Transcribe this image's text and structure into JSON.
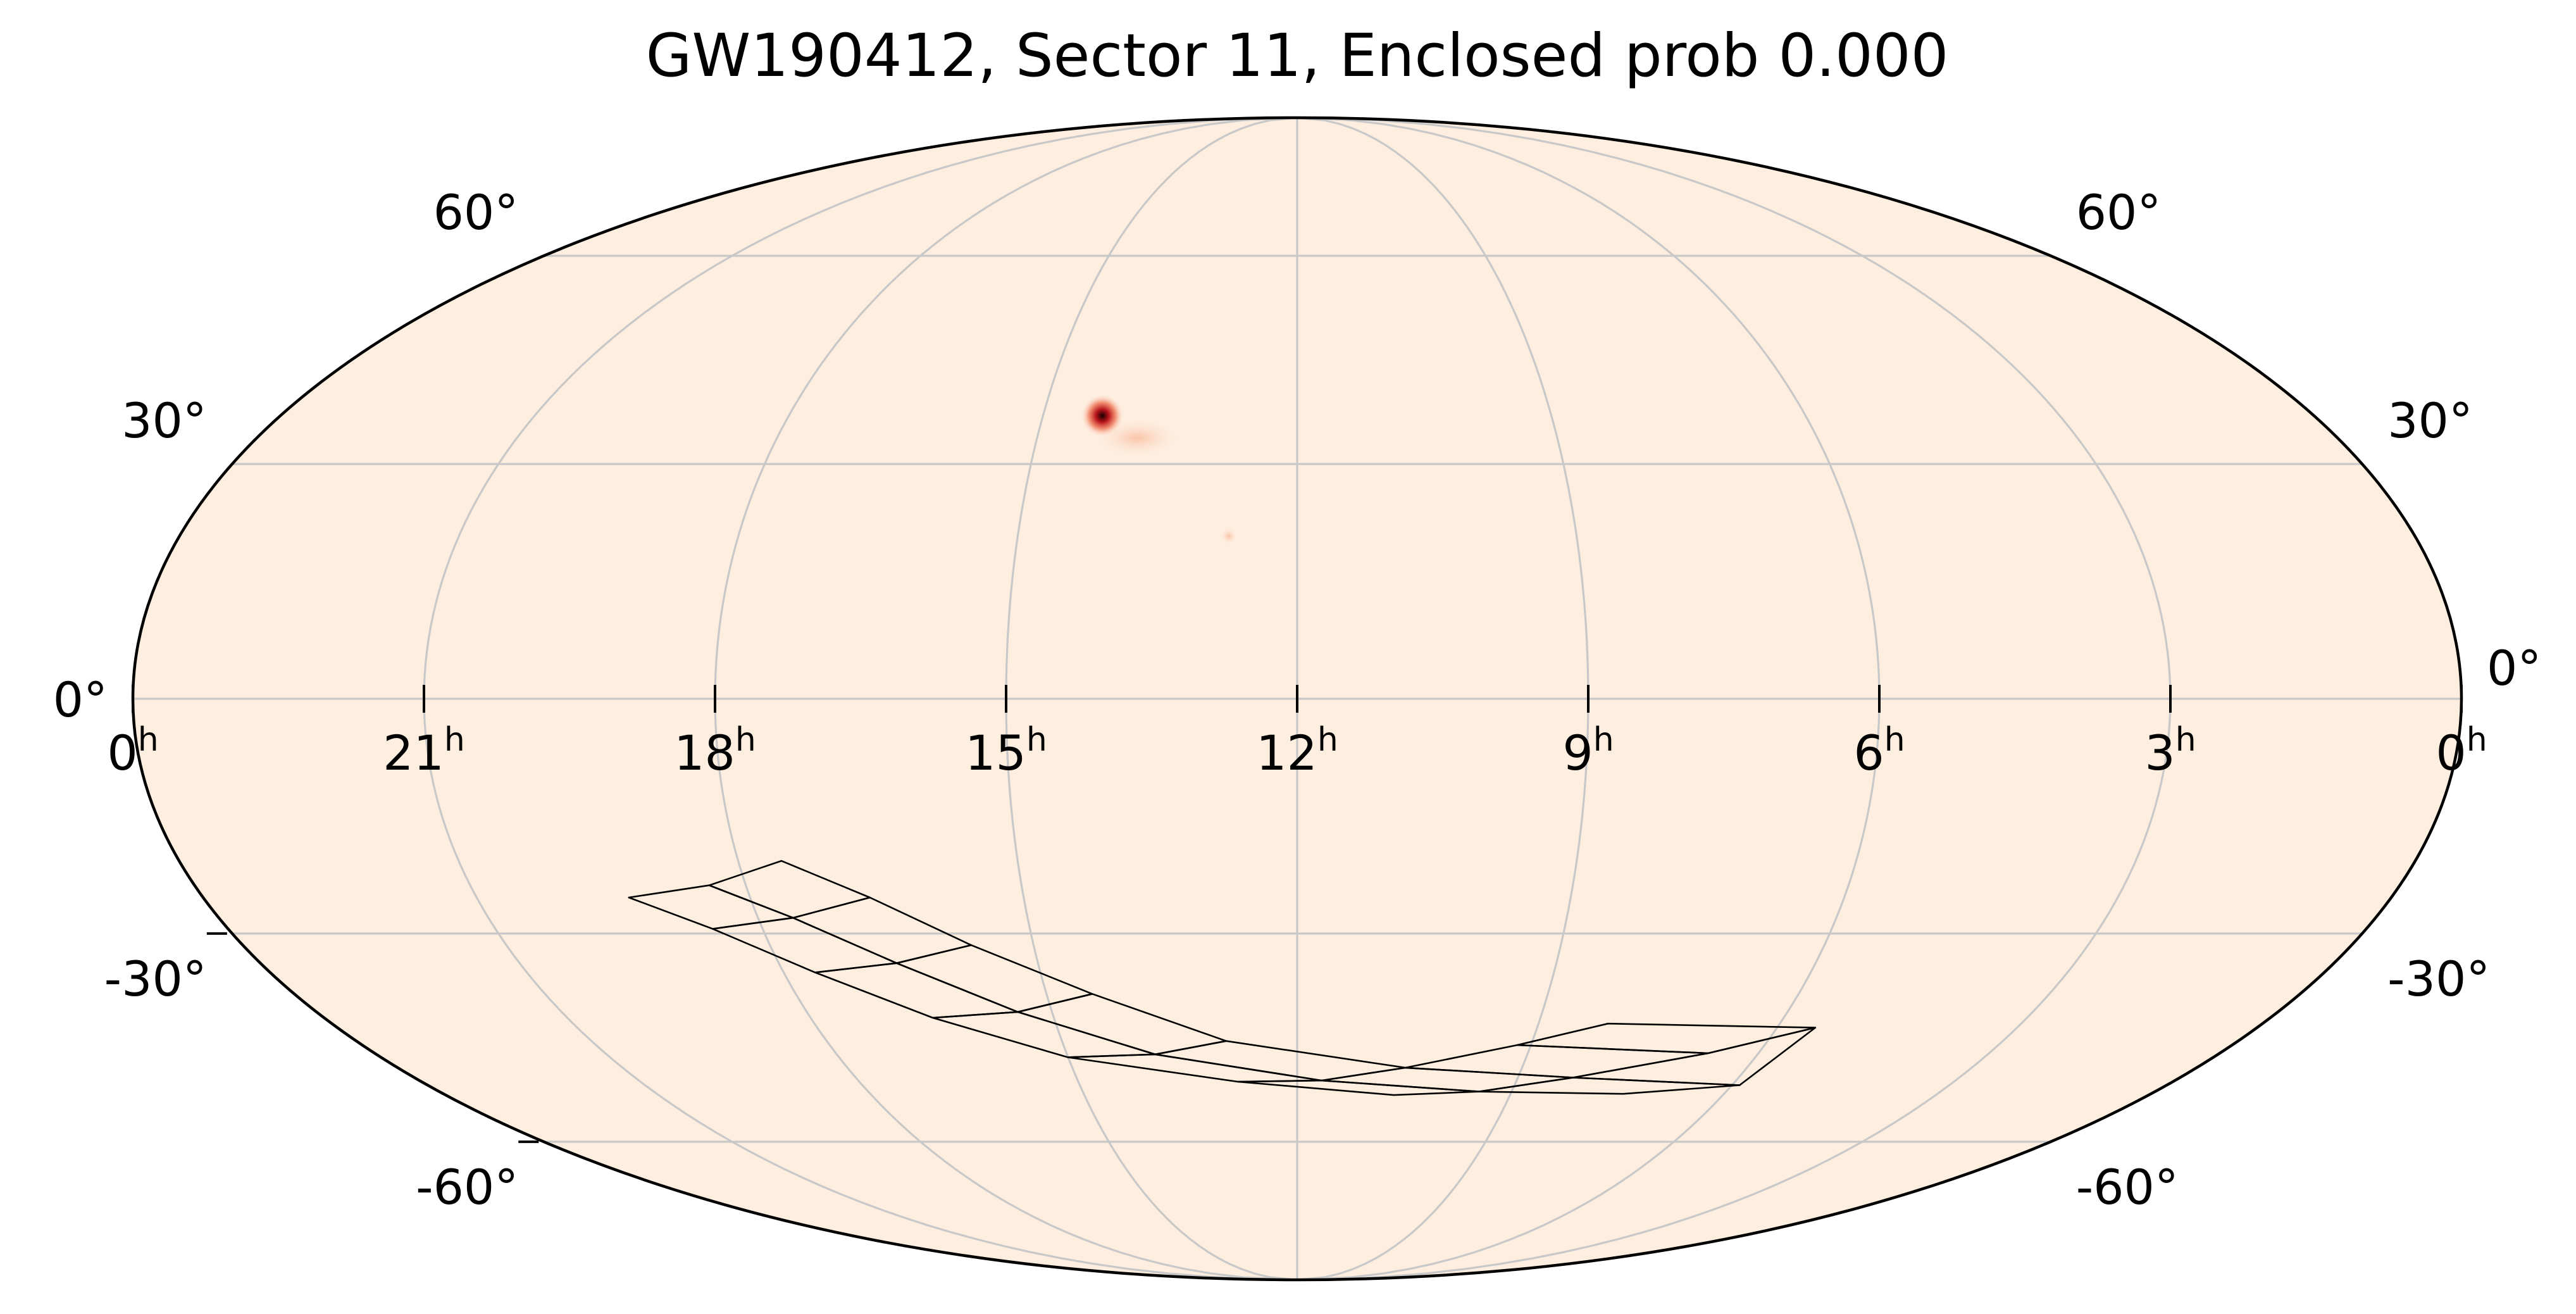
{
  "title": "GW190412, Sector 11, Enclosed prob 0.000",
  "colors": {
    "background": "#ffffff",
    "sky_fill": "#feeee0",
    "grid": "#c8c8c8",
    "frame": "#000000",
    "tile_outline": "#000000",
    "hotspot_core": "#1a0000",
    "hotspot_inner": "#b8141c",
    "hotspot_outer": "#f08060"
  },
  "projection": "mollweide",
  "ra_ticks": [
    {
      "ra_hours": 24,
      "label": "0",
      "sup": "h"
    },
    {
      "ra_hours": 21,
      "label": "21",
      "sup": "h"
    },
    {
      "ra_hours": 18,
      "label": "18",
      "sup": "h"
    },
    {
      "ra_hours": 15,
      "label": "15",
      "sup": "h"
    },
    {
      "ra_hours": 12,
      "label": "12",
      "sup": "h"
    },
    {
      "ra_hours": 9,
      "label": "9",
      "sup": "h"
    },
    {
      "ra_hours": 6,
      "label": "6",
      "sup": "h"
    },
    {
      "ra_hours": 3,
      "label": "3",
      "sup": "h"
    },
    {
      "ra_hours": 0,
      "label": "0",
      "sup": "h"
    }
  ],
  "dec_ticks": [
    {
      "dec": 60,
      "left_label": "60°",
      "right_label": "60°"
    },
    {
      "dec": 30,
      "left_label": "30°",
      "right_label": "30°"
    },
    {
      "dec": 0,
      "left_label": "0°",
      "right_label": "0°"
    },
    {
      "dec": -30,
      "left_label": "-30°",
      "right_label": "-30°"
    },
    {
      "dec": -60,
      "left_label": "-60°",
      "right_label": "-60°"
    }
  ],
  "probability_hotspot": {
    "ra_hours": 14.3,
    "dec": 36.5
  },
  "sector_tiles": [
    [
      [
        -0.574,
        -0.342
      ],
      [
        -0.505,
        -0.321
      ],
      [
        -0.433,
        -0.377
      ],
      [
        -0.502,
        -0.396
      ]
    ],
    [
      [
        -0.505,
        -0.321
      ],
      [
        -0.443,
        -0.279
      ],
      [
        -0.367,
        -0.342
      ],
      [
        -0.433,
        -0.377
      ]
    ],
    [
      [
        -0.502,
        -0.396
      ],
      [
        -0.433,
        -0.377
      ],
      [
        -0.344,
        -0.455
      ],
      [
        -0.414,
        -0.471
      ]
    ],
    [
      [
        -0.433,
        -0.377
      ],
      [
        -0.367,
        -0.342
      ],
      [
        -0.28,
        -0.424
      ],
      [
        -0.344,
        -0.455
      ]
    ],
    [
      [
        -0.414,
        -0.471
      ],
      [
        -0.344,
        -0.455
      ],
      [
        -0.24,
        -0.539
      ],
      [
        -0.313,
        -0.549
      ]
    ],
    [
      [
        -0.344,
        -0.455
      ],
      [
        -0.28,
        -0.424
      ],
      [
        -0.176,
        -0.508
      ],
      [
        -0.24,
        -0.539
      ]
    ],
    [
      [
        -0.313,
        -0.549
      ],
      [
        -0.24,
        -0.539
      ],
      [
        -0.122,
        -0.612
      ],
      [
        -0.197,
        -0.617
      ]
    ],
    [
      [
        -0.24,
        -0.539
      ],
      [
        -0.176,
        -0.508
      ],
      [
        -0.061,
        -0.589
      ],
      [
        -0.122,
        -0.612
      ]
    ],
    [
      [
        -0.197,
        -0.617
      ],
      [
        -0.122,
        -0.612
      ],
      [
        0.021,
        -0.657
      ],
      [
        -0.051,
        -0.659
      ]
    ],
    [
      [
        -0.122,
        -0.612
      ],
      [
        -0.061,
        -0.589
      ],
      [
        0.093,
        -0.635
      ],
      [
        0.021,
        -0.657
      ]
    ],
    [
      [
        -0.051,
        -0.659
      ],
      [
        0.021,
        -0.657
      ],
      [
        0.156,
        -0.676
      ],
      [
        0.083,
        -0.682
      ]
    ],
    [
      [
        0.021,
        -0.657
      ],
      [
        0.093,
        -0.635
      ],
      [
        0.237,
        -0.652
      ],
      [
        0.156,
        -0.676
      ]
    ],
    [
      [
        0.093,
        -0.635
      ],
      [
        0.189,
        -0.596
      ],
      [
        0.353,
        -0.61
      ],
      [
        0.237,
        -0.652
      ]
    ],
    [
      [
        0.156,
        -0.676
      ],
      [
        0.237,
        -0.652
      ],
      [
        0.38,
        -0.665
      ],
      [
        0.28,
        -0.68
      ]
    ],
    [
      [
        0.189,
        -0.596
      ],
      [
        0.267,
        -0.559
      ],
      [
        0.445,
        -0.566
      ],
      [
        0.353,
        -0.61
      ]
    ],
    [
      [
        0.237,
        -0.652
      ],
      [
        0.353,
        -0.61
      ],
      [
        0.445,
        -0.566
      ],
      [
        0.38,
        -0.665
      ]
    ]
  ]
}
